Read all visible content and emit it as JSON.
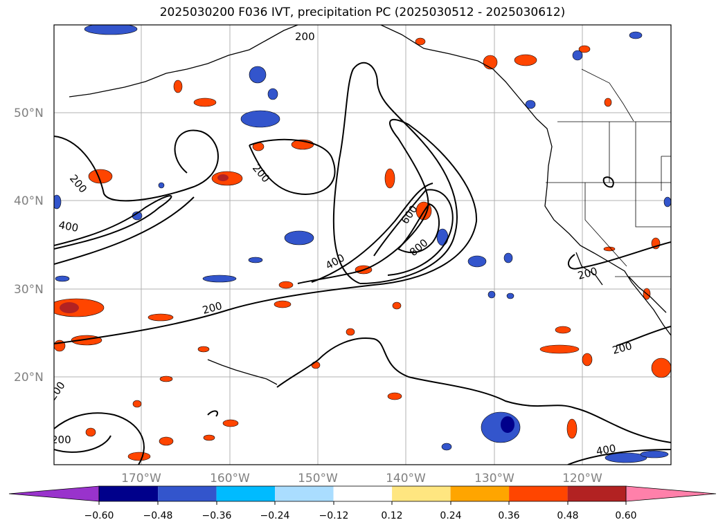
{
  "title": "2025030200 F036 IVT, precipitation PC (2025030512 - 2025030612)",
  "map": {
    "lat_labels": [
      "50°N",
      "40°N",
      "30°N",
      "20°N"
    ],
    "lon_labels": [
      "170°W",
      "160°W",
      "150°W",
      "140°W",
      "130°W",
      "120°W"
    ],
    "ivt_contour_levels": [
      "200",
      "400",
      "600",
      "800"
    ],
    "contour_labels": [
      "200",
      "200",
      "200",
      "200",
      "400",
      "400",
      "600",
      "800",
      "200",
      "200",
      "200",
      "400",
      "200",
      "200"
    ]
  },
  "colorbar": {
    "ticks": [
      "−0.60",
      "−0.48",
      "−0.36",
      "−0.24",
      "−0.12",
      "0.12",
      "0.24",
      "0.36",
      "0.48",
      "0.60"
    ],
    "colors": [
      "#9933cc",
      "#00008b",
      "#3355cc",
      "#00bbff",
      "#aaddff",
      "#ffffff",
      "#ffe680",
      "#ffa500",
      "#ff4500",
      "#b22222",
      "#ff80aa"
    ]
  }
}
